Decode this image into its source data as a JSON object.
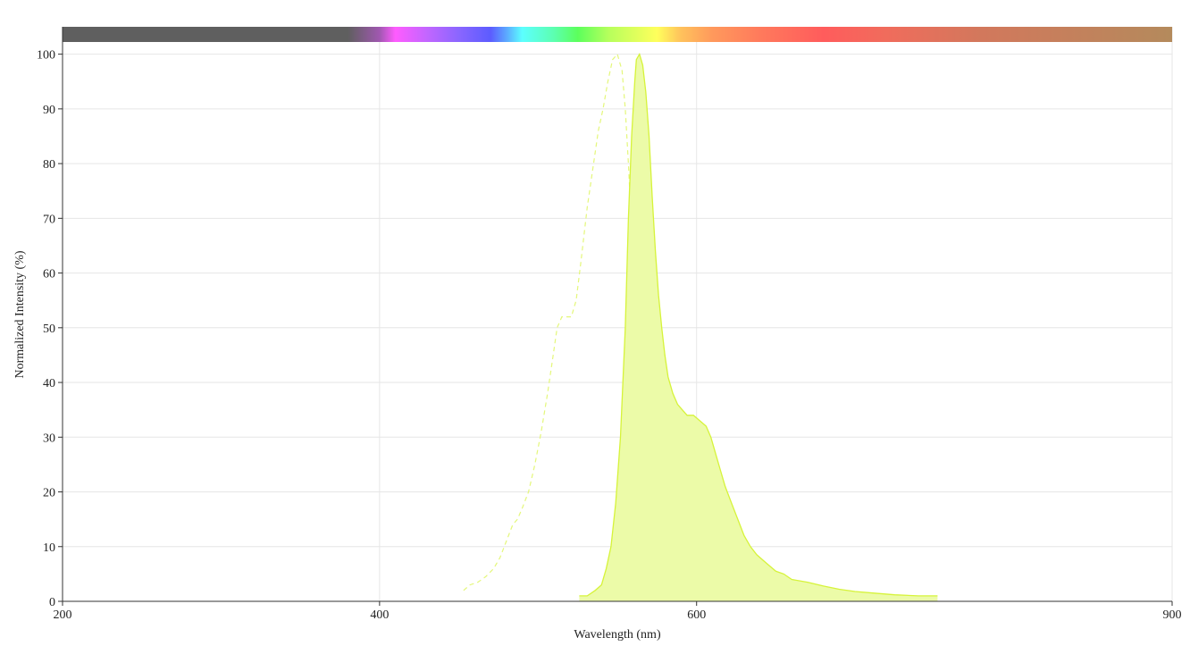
{
  "chart_data": {
    "type": "area",
    "xlabel": "Wavelength (nm)",
    "ylabel": "Normalized Intensity (%)",
    "xlim": [
      200,
      900
    ],
    "ylim": [
      0,
      105
    ],
    "x_ticks": [
      200,
      400,
      600,
      900
    ],
    "y_ticks": [
      0,
      10,
      20,
      30,
      40,
      50,
      60,
      70,
      80,
      90,
      100
    ],
    "grid": true,
    "spectrum_bar": {
      "stops": [
        [
          200,
          "#5f5f5f"
        ],
        [
          380,
          "#5f5f5f"
        ],
        [
          400,
          "#a058b0"
        ],
        [
          410,
          "#ff5cff"
        ],
        [
          430,
          "#c266ff"
        ],
        [
          450,
          "#8a66ff"
        ],
        [
          470,
          "#5c5cff"
        ],
        [
          480,
          "#5ca8ff"
        ],
        [
          490,
          "#5cffff"
        ],
        [
          510,
          "#5cffb0"
        ],
        [
          525,
          "#5cff5c"
        ],
        [
          545,
          "#b8ff5c"
        ],
        [
          575,
          "#ffff5c"
        ],
        [
          590,
          "#ffc25c"
        ],
        [
          610,
          "#ff995c"
        ],
        [
          640,
          "#ff7a5c"
        ],
        [
          680,
          "#ff5c5c"
        ],
        [
          720,
          "#f06c5c"
        ],
        [
          780,
          "#d2785c"
        ],
        [
          900,
          "#b48a5c"
        ]
      ]
    },
    "series": [
      {
        "style": "dashed",
        "color": "#e4f77a",
        "x": [
          453,
          457,
          462,
          467,
          472,
          476,
          480,
          484,
          487,
          490,
          494,
          498,
          502,
          506,
          509,
          512,
          515,
          518,
          521,
          524,
          527,
          531,
          535,
          538,
          541,
          544,
          547,
          550,
          553,
          555,
          557,
          559,
          560,
          562,
          564,
          566,
          568,
          570,
          572,
          575,
          578,
          582,
          586,
          590,
          594,
          598
        ],
        "y": [
          2,
          3,
          3.5,
          4.5,
          6,
          8,
          11,
          14,
          15,
          17,
          20,
          25,
          31,
          38,
          44,
          50,
          52,
          52,
          52,
          55,
          62,
          72,
          80,
          86,
          90,
          95,
          99,
          100,
          97,
          90,
          80,
          68,
          55,
          42,
          30,
          22,
          15,
          10,
          7,
          4.5,
          3,
          1.8,
          1,
          0.5,
          0.2,
          0
        ]
      },
      {
        "style": "filled",
        "color": "#d6f33a",
        "fill": "#ecfba8",
        "x": [
          526,
          531,
          536,
          540,
          543,
          546,
          549,
          552,
          555,
          557,
          559,
          561,
          562,
          564,
          566,
          568,
          570,
          572,
          574,
          576,
          578,
          580,
          582,
          585,
          588,
          591,
          594,
          598,
          602,
          606,
          609,
          612,
          615,
          618,
          622,
          626,
          630,
          634,
          638,
          642,
          646,
          650,
          655,
          660,
          670,
          680,
          690,
          700,
          712,
          725,
          740,
          752
        ],
        "y": [
          1,
          1,
          2,
          3,
          6,
          10,
          18,
          30,
          50,
          70,
          85,
          95,
          99,
          100,
          98,
          93,
          85,
          74,
          64,
          56,
          50,
          45,
          41,
          38,
          36,
          35,
          34,
          34,
          33,
          32,
          30,
          27,
          24,
          21,
          18,
          15,
          12,
          10,
          8.5,
          7.5,
          6.5,
          5.5,
          5,
          4,
          3.5,
          2.8,
          2.2,
          1.8,
          1.5,
          1.2,
          1,
          1
        ]
      }
    ]
  }
}
